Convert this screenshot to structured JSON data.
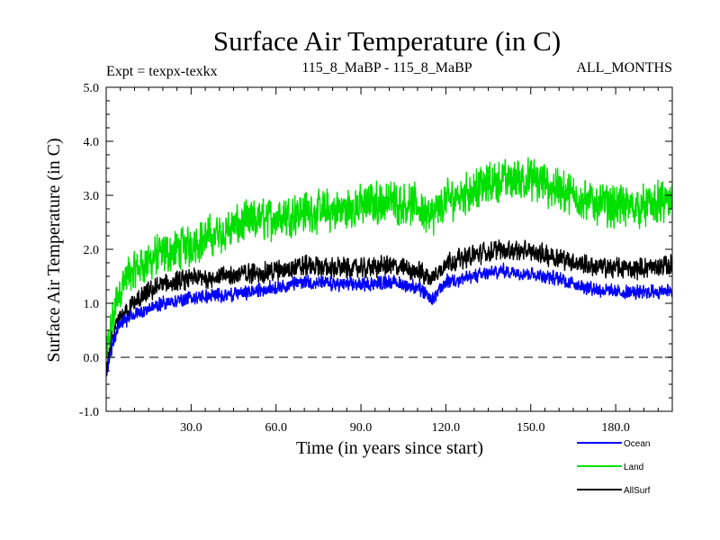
{
  "chart_data": {
    "type": "line",
    "title": "Surface Air Temperature (in C)",
    "subtitle_left": "Expt = texpx-texkx",
    "subtitle_center": "115_8_MaBP - 115_8_MaBP",
    "subtitle_right": "ALL_MONTHS",
    "xlabel": "Time (in years since start)",
    "ylabel": "Surface Air Temperature (in C)",
    "xlim": [
      0,
      200
    ],
    "ylim": [
      -1.0,
      5.0
    ],
    "xticks": [
      30,
      60,
      90,
      120,
      150,
      180
    ],
    "xtick_labels": [
      "30.0",
      "60.0",
      "90.0",
      "120.0",
      "150.0",
      "180.0"
    ],
    "yticks": [
      -1,
      0,
      1,
      2,
      3,
      4,
      5
    ],
    "ytick_labels": [
      "-1.0",
      "0.0",
      "1.0",
      "2.0",
      "3.0",
      "4.0",
      "5.0"
    ],
    "reference_line_y": 0.0,
    "series": [
      {
        "name": "Land",
        "color": "#00e000",
        "trend_x": [
          0,
          2,
          4,
          6,
          10,
          15,
          20,
          30,
          40,
          50,
          60,
          70,
          80,
          90,
          100,
          110,
          115,
          120,
          130,
          140,
          150,
          160,
          170,
          180,
          190,
          200
        ],
        "trend_y": [
          0.0,
          0.6,
          1.1,
          1.4,
          1.6,
          1.8,
          1.9,
          2.1,
          2.3,
          2.5,
          2.6,
          2.7,
          2.7,
          2.8,
          2.9,
          2.8,
          2.6,
          2.9,
          3.1,
          3.3,
          3.3,
          3.1,
          2.9,
          2.8,
          2.8,
          2.9
        ],
        "noise": 0.45
      },
      {
        "name": "AllSurf",
        "color": "#000000",
        "trend_x": [
          0,
          2,
          4,
          6,
          10,
          15,
          20,
          30,
          40,
          50,
          60,
          70,
          80,
          90,
          100,
          110,
          115,
          120,
          130,
          140,
          150,
          160,
          170,
          180,
          190,
          200
        ],
        "trend_y": [
          -0.3,
          0.3,
          0.6,
          0.8,
          1.0,
          1.2,
          1.35,
          1.45,
          1.5,
          1.55,
          1.6,
          1.7,
          1.65,
          1.65,
          1.7,
          1.6,
          1.45,
          1.75,
          1.9,
          2.0,
          1.95,
          1.85,
          1.7,
          1.65,
          1.65,
          1.7
        ],
        "noise": 0.22
      },
      {
        "name": "Ocean",
        "color": "#0000ff",
        "trend_x": [
          0,
          2,
          4,
          6,
          10,
          15,
          20,
          30,
          40,
          50,
          60,
          70,
          80,
          90,
          100,
          110,
          115,
          120,
          130,
          140,
          150,
          160,
          170,
          180,
          190,
          200
        ],
        "trend_y": [
          -0.3,
          0.2,
          0.5,
          0.65,
          0.8,
          0.9,
          1.0,
          1.1,
          1.15,
          1.2,
          1.3,
          1.4,
          1.35,
          1.35,
          1.4,
          1.3,
          1.05,
          1.4,
          1.5,
          1.6,
          1.55,
          1.45,
          1.3,
          1.2,
          1.2,
          1.25
        ],
        "noise": 0.15
      }
    ],
    "legend": [
      {
        "label": "Ocean",
        "color": "#0000ff"
      },
      {
        "label": "Land",
        "color": "#00e000"
      },
      {
        "label": "AllSurf",
        "color": "#000000"
      }
    ],
    "legend_position": "bottom-right"
  }
}
